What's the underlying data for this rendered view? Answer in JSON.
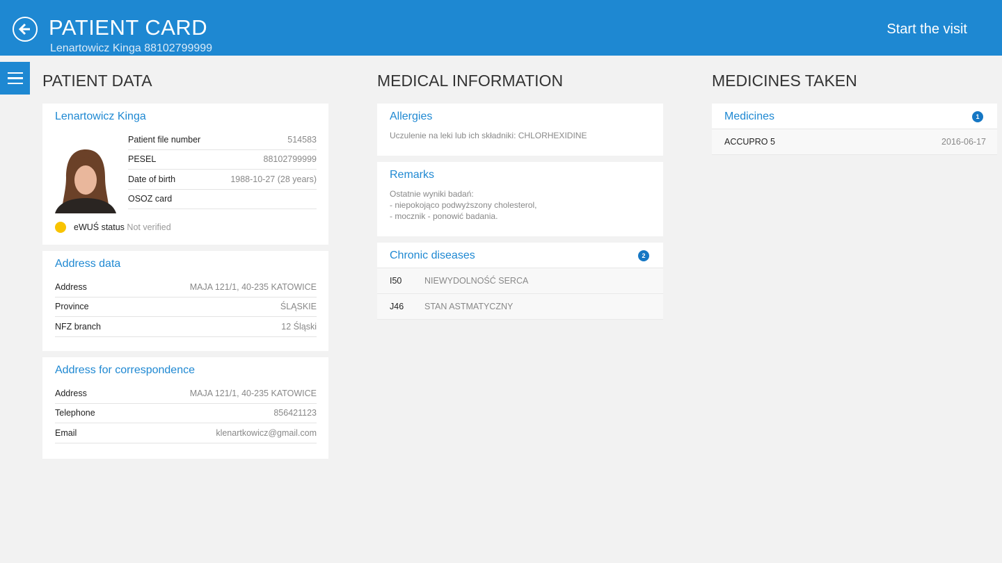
{
  "header": {
    "title": "PATIENT CARD",
    "subtitle": "Lenartowicz Kinga 88102799999",
    "start_visit": "Start the visit"
  },
  "patient_data": {
    "heading": "PATIENT DATA",
    "card": {
      "name": "Lenartowicz Kinga",
      "rows": [
        {
          "label": "Patient file number",
          "value": "514583"
        },
        {
          "label": "PESEL",
          "value": "88102799999"
        },
        {
          "label": "Date of birth",
          "value": "1988-10-27 (28 years)"
        },
        {
          "label": "OSOZ card",
          "value": ""
        }
      ],
      "ewus_label": "eWUŚ status",
      "ewus_value": "Not verified",
      "ewus_color": "#f8c300"
    },
    "address": {
      "title": "Address data",
      "rows": [
        {
          "label": "Address",
          "value": "MAJA 121/1, 40-235 KATOWICE"
        },
        {
          "label": "Province",
          "value": "ŚLĄSKIE"
        },
        {
          "label": "NFZ branch",
          "value": "12 Śląski"
        }
      ]
    },
    "correspondence": {
      "title": "Address for correspondence",
      "rows": [
        {
          "label": "Address",
          "value": "MAJA 121/1, 40-235 KATOWICE"
        },
        {
          "label": "Telephone",
          "value": "856421123"
        },
        {
          "label": "Email",
          "value": "klenartkowicz@gmail.com"
        }
      ]
    }
  },
  "medical": {
    "heading": "MEDICAL INFORMATION",
    "allergies": {
      "title": "Allergies",
      "text": "Uczulenie na leki lub ich składniki: CHLORHEXIDINE"
    },
    "remarks": {
      "title": "Remarks",
      "lines": [
        "Ostatnie wyniki badań:",
        "- niepokojąco podwyższony cholesterol,",
        "- mocznik - ponowić badania."
      ]
    },
    "chronic": {
      "title": "Chronic diseases",
      "count": "2",
      "items": [
        {
          "code": "I50",
          "name": "NIEWYDOLNOŚĆ SERCA"
        },
        {
          "code": "J46",
          "name": "STAN ASTMATYCZNY"
        }
      ]
    }
  },
  "medicines": {
    "heading": "MEDICINES TAKEN",
    "title": "Medicines",
    "count": "1",
    "items": [
      {
        "name": "ACCUPRO 5",
        "date": "2016-06-17"
      }
    ]
  },
  "colors": {
    "accent": "#1e88d2",
    "background": "#f2f2f2"
  }
}
